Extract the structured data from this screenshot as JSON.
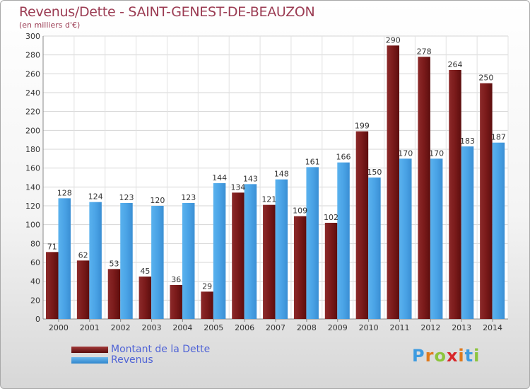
{
  "title": "Revenus/Dette - SAINT-GENEST-DE-BEAUZON",
  "subtitle": "(en milliers d'€)",
  "logo": {
    "letters": [
      "P",
      "r",
      "o",
      "x",
      "i",
      "t",
      "i"
    ],
    "colors": [
      "#3d9be0",
      "#e07a1c",
      "#8cc43c",
      "#d8262a",
      "#e07a1c",
      "#3d9be0",
      "#8cc43c"
    ]
  },
  "colors": {
    "dette": "#7a1a1a",
    "revenus": "#4aa3e6"
  },
  "chart_data": {
    "type": "bar",
    "categories": [
      "2000",
      "2001",
      "2002",
      "2003",
      "2004",
      "2005",
      "2006",
      "2007",
      "2008",
      "2009",
      "2010",
      "2011",
      "2012",
      "2013",
      "2014"
    ],
    "series": [
      {
        "name": "Montant de la Dette",
        "values": [
          71,
          62,
          53,
          45,
          36,
          29,
          134,
          121,
          109,
          102,
          199,
          290,
          278,
          264,
          250
        ]
      },
      {
        "name": "Revenus",
        "values": [
          128,
          124,
          123,
          120,
          123,
          144,
          143,
          148,
          161,
          166,
          150,
          170,
          170,
          183,
          187
        ]
      }
    ],
    "ylim": [
      0,
      300
    ],
    "yticks": [
      0,
      20,
      40,
      60,
      80,
      100,
      120,
      140,
      160,
      180,
      200,
      220,
      240,
      260,
      280,
      300
    ],
    "grid": true,
    "legend_position": "bottom-left"
  }
}
